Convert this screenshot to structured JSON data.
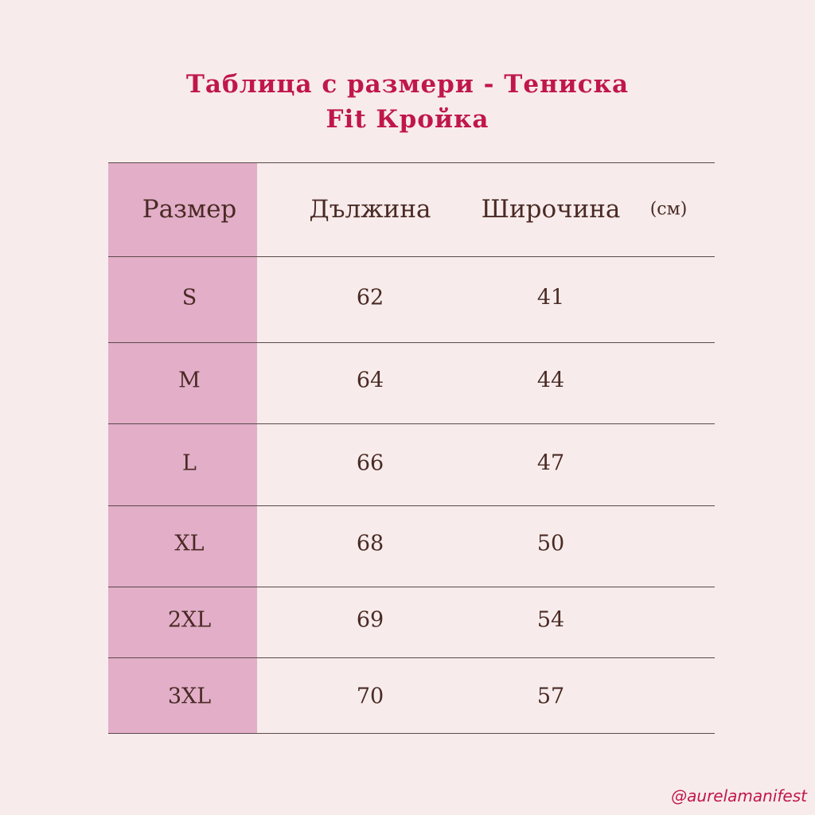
{
  "header": {
    "title": [
      "Таблица с размери - Тениска",
      "Fit Кройка"
    ]
  },
  "table": {
    "columns": [
      "Размер",
      "Дължина",
      "Широчина"
    ],
    "unit": "(см)",
    "rows": [
      [
        "S",
        62,
        41
      ],
      [
        "M",
        64,
        44
      ],
      [
        "L",
        66,
        47
      ],
      [
        "XL",
        68,
        50
      ],
      [
        "2XL",
        69,
        54
      ],
      [
        "3XL",
        70,
        57
      ]
    ]
  },
  "footer": {
    "handle": "@aurelamanifest"
  }
}
